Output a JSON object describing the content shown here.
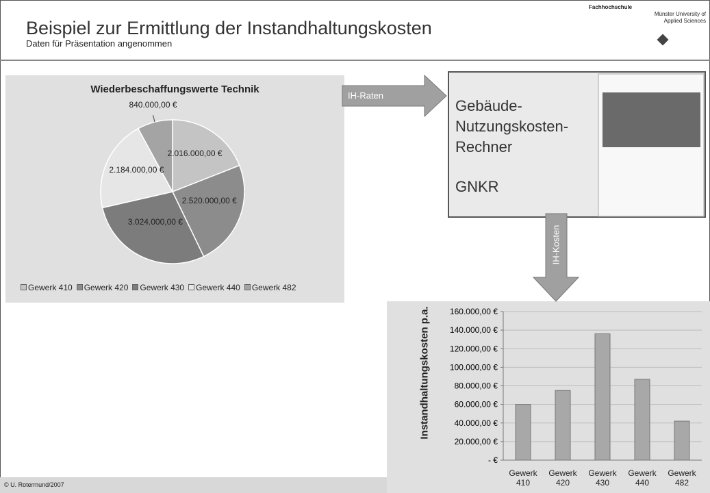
{
  "header": {
    "title": "Beispiel zur Ermittlung der Instandhaltungskosten",
    "subtitle": "Daten für Präsentation angenommen"
  },
  "logo": {
    "line1": "Fachhochschule",
    "line2": "Münster University of",
    "line3": "Applied Sciences"
  },
  "arrows": {
    "right": "IH-Raten",
    "down": "IH-Kosten"
  },
  "box": {
    "name": "Gebäude-Nutzungskosten-Rechner",
    "abbr": "GNKR"
  },
  "footer": "© U. Rotermund/2007",
  "chart_data": [
    {
      "type": "pie",
      "title": "Wiederbeschaffungswerte Technik",
      "categories": [
        "Gewerk 410",
        "Gewerk 420",
        "Gewerk 430",
        "Gewerk 440",
        "Gewerk 482"
      ],
      "values": [
        2016000,
        2520000,
        3024000,
        2184000,
        840000
      ],
      "value_labels": [
        "2.016.000,00 €",
        "2.520.000,00 €",
        "3.024.000,00 €",
        "2.184.000,00 €",
        "840.000,00 €"
      ],
      "colors": [
        "#c4c4c4",
        "#8c8c8c",
        "#7c7c7c",
        "#e6e6e6",
        "#a4a4a4"
      ],
      "legend": "bottom"
    },
    {
      "type": "bar",
      "y_label": "Instandhaltungskosten p.a.",
      "categories": [
        "Gewerk 410",
        "Gewerk 420",
        "Gewerk 430",
        "Gewerk 440",
        "Gewerk 482"
      ],
      "values": [
        60000,
        75000,
        136000,
        87000,
        42000
      ],
      "color": "#a8a8a8",
      "ylim": [
        0,
        160000
      ],
      "yticks": [
        {
          "value": 0,
          "label": "- €"
        },
        {
          "value": 20000,
          "label": "20.000,00 €"
        },
        {
          "value": 40000,
          "label": "40.000,00 €"
        },
        {
          "value": 60000,
          "label": "60.000,00 €"
        },
        {
          "value": 80000,
          "label": "80.000,00 €"
        },
        {
          "value": 100000,
          "label": "100.000,00 €"
        },
        {
          "value": 120000,
          "label": "120.000,00 €"
        },
        {
          "value": 140000,
          "label": "140.000,00 €"
        },
        {
          "value": 160000,
          "label": "160.000,00 €"
        }
      ],
      "grid": true
    }
  ]
}
